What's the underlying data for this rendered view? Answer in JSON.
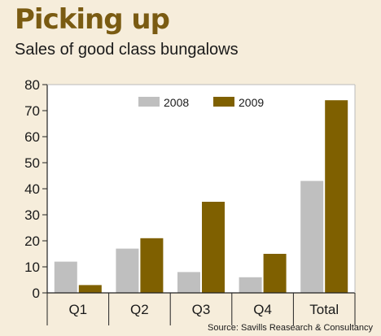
{
  "header": {
    "title": "Picking up",
    "subtitle": "Sales of good class bungalows"
  },
  "footer": {
    "source": "Source: Savills Reasearch & Consultancy"
  },
  "chart_data": {
    "type": "bar",
    "categories": [
      "Q1",
      "Q2",
      "Q3",
      "Q4",
      "Total"
    ],
    "series": [
      {
        "name": "2008",
        "values": [
          12,
          17,
          8,
          6,
          43
        ],
        "color": "#bfbfbf"
      },
      {
        "name": "2009",
        "values": [
          3,
          21,
          35,
          15,
          74
        ],
        "color": "#7f6000"
      }
    ],
    "ylim": [
      0,
      80
    ],
    "yticks": [
      0,
      10,
      20,
      30,
      40,
      50,
      60,
      70,
      80
    ],
    "grid": false,
    "legend_position": "top-center",
    "xlabel": "",
    "ylabel": ""
  }
}
